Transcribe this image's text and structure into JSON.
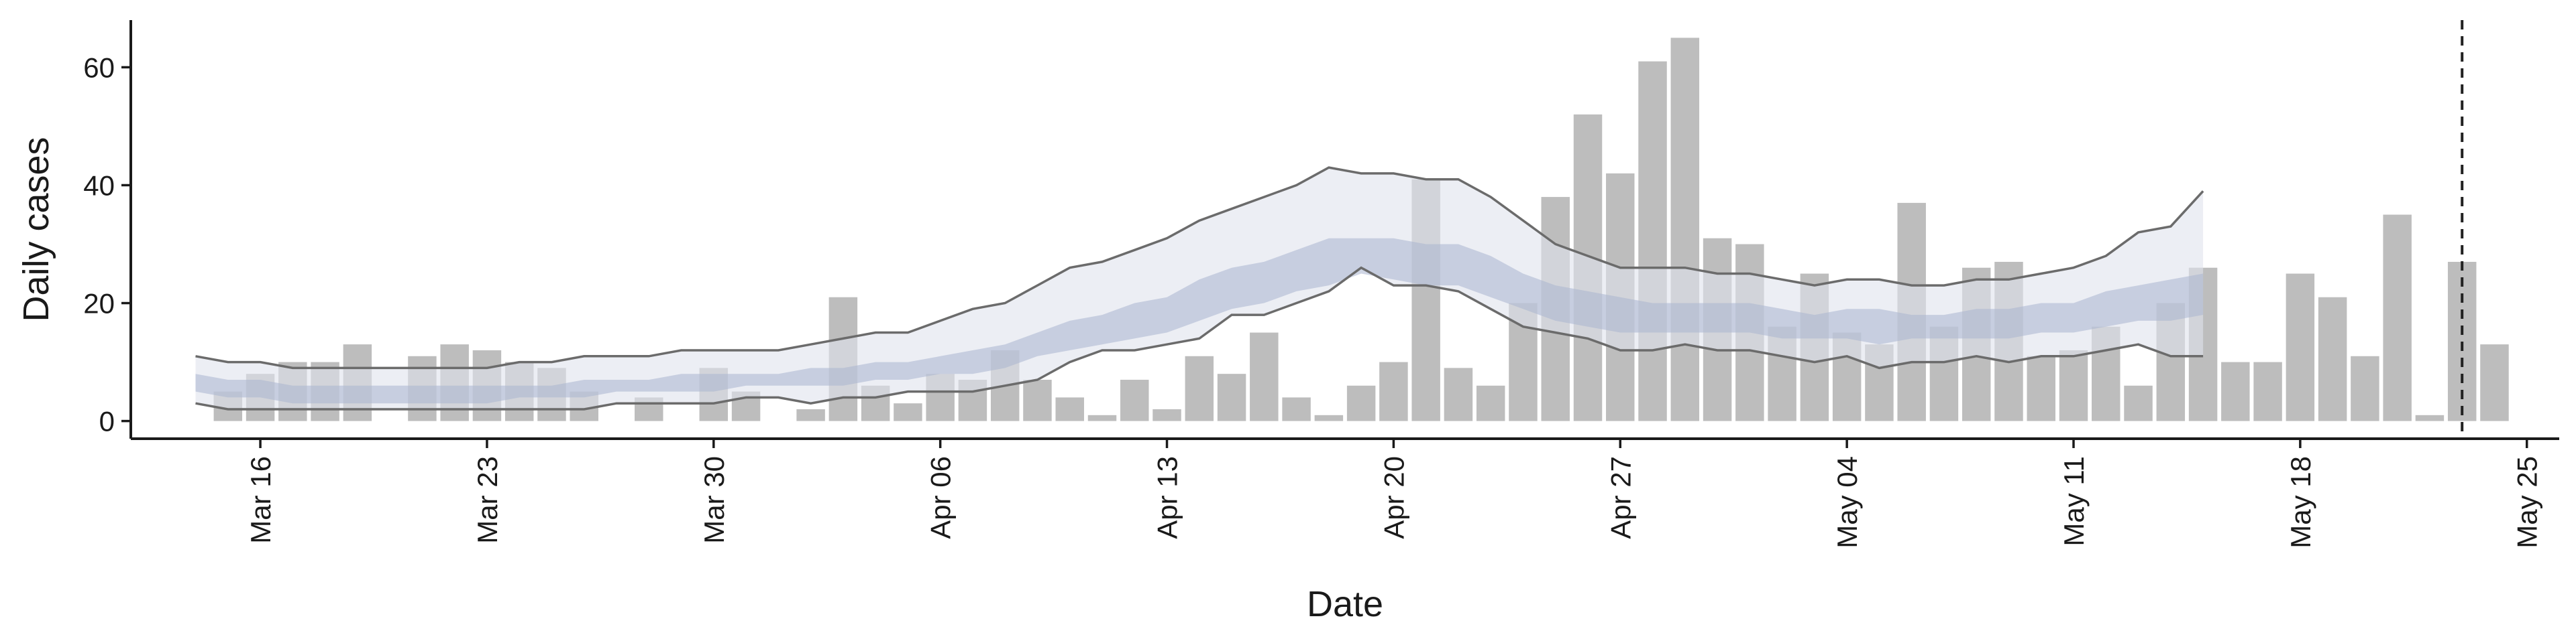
{
  "chart_data": {
    "type": "bar",
    "xlabel": "Date",
    "ylabel": "Daily cases",
    "ylim": [
      -3,
      68
    ],
    "yticks": [
      0,
      20,
      40,
      60
    ],
    "xlim": [
      "2020-03-12",
      "2020-05-26"
    ],
    "xticks": [
      {
        "date": "2020-03-16",
        "label": "Mar 16"
      },
      {
        "date": "2020-03-23",
        "label": "Mar 23"
      },
      {
        "date": "2020-03-30",
        "label": "Mar 30"
      },
      {
        "date": "2020-04-06",
        "label": "Apr 06"
      },
      {
        "date": "2020-04-13",
        "label": "Apr 13"
      },
      {
        "date": "2020-04-20",
        "label": "Apr 20"
      },
      {
        "date": "2020-04-27",
        "label": "Apr 27"
      },
      {
        "date": "2020-05-04",
        "label": "May 04"
      },
      {
        "date": "2020-05-11",
        "label": "May 11"
      },
      {
        "date": "2020-05-18",
        "label": "May 18"
      },
      {
        "date": "2020-05-25",
        "label": "May 25"
      }
    ],
    "grid": false,
    "vline_date": "2020-05-23",
    "colors": {
      "bars": "#bdbdbd",
      "inner_band": "#aab4cf",
      "outer_band": "#dfe2ec",
      "bound_lines": "#6b6b6b",
      "vline": "#222222"
    },
    "bars": {
      "start_date": "2020-03-15",
      "values": [
        5,
        8,
        10,
        10,
        13,
        0,
        11,
        13,
        12,
        10,
        9,
        5,
        0,
        4,
        0,
        9,
        5,
        0,
        2,
        21,
        6,
        3,
        8,
        7,
        12,
        7,
        4,
        1,
        7,
        2,
        11,
        8,
        15,
        4,
        1,
        6,
        10,
        41,
        9,
        6,
        20,
        38,
        52,
        42,
        61,
        65,
        31,
        30,
        16,
        25,
        15,
        13,
        37,
        16,
        26,
        27,
        11,
        12,
        16,
        6,
        20,
        26,
        10,
        10,
        25,
        21,
        11,
        35,
        1,
        27,
        13
      ]
    },
    "bands": {
      "start_date": "2020-03-14",
      "outer_upper": [
        11,
        10,
        10,
        9,
        9,
        9,
        9,
        9,
        9,
        9,
        10,
        10,
        11,
        11,
        11,
        12,
        12,
        12,
        12,
        13,
        14,
        15,
        15,
        17,
        19,
        20,
        23,
        26,
        27,
        29,
        31,
        34,
        36,
        38,
        40,
        43,
        42,
        42,
        41,
        41,
        38,
        34,
        30,
        28,
        26,
        26,
        26,
        25,
        25,
        24,
        23,
        24,
        24,
        23,
        23,
        24,
        24,
        25,
        26,
        28,
        32,
        33,
        39
      ],
      "outer_lower": [
        3,
        2,
        2,
        2,
        2,
        2,
        2,
        2,
        2,
        2,
        2,
        2,
        2,
        3,
        3,
        3,
        3,
        4,
        4,
        3,
        4,
        4,
        5,
        5,
        5,
        6,
        7,
        10,
        12,
        12,
        13,
        14,
        18,
        18,
        20,
        22,
        26,
        23,
        23,
        22,
        19,
        16,
        15,
        14,
        12,
        12,
        13,
        12,
        12,
        11,
        10,
        11,
        9,
        10,
        10,
        11,
        10,
        11,
        11,
        12,
        13,
        11,
        11
      ],
      "inner_upper": [
        8,
        7,
        7,
        6,
        6,
        6,
        6,
        6,
        6,
        6,
        6,
        6,
        7,
        7,
        7,
        8,
        8,
        8,
        8,
        9,
        9,
        10,
        10,
        11,
        12,
        13,
        15,
        17,
        18,
        20,
        21,
        24,
        26,
        27,
        29,
        31,
        31,
        31,
        30,
        30,
        28,
        25,
        23,
        22,
        21,
        20,
        20,
        20,
        20,
        19,
        18,
        19,
        19,
        18,
        18,
        19,
        19,
        20,
        20,
        22,
        23,
        24,
        25
      ],
      "inner_lower": [
        5,
        4,
        4,
        3,
        3,
        3,
        3,
        3,
        3,
        3,
        4,
        4,
        4,
        5,
        5,
        5,
        5,
        6,
        6,
        6,
        6,
        7,
        7,
        8,
        8,
        9,
        11,
        12,
        13,
        14,
        15,
        17,
        19,
        20,
        22,
        23,
        25,
        24,
        23,
        23,
        21,
        19,
        17,
        16,
        15,
        15,
        15,
        15,
        15,
        14,
        14,
        14,
        13,
        14,
        14,
        14,
        14,
        15,
        15,
        16,
        17,
        17,
        18
      ]
    }
  }
}
